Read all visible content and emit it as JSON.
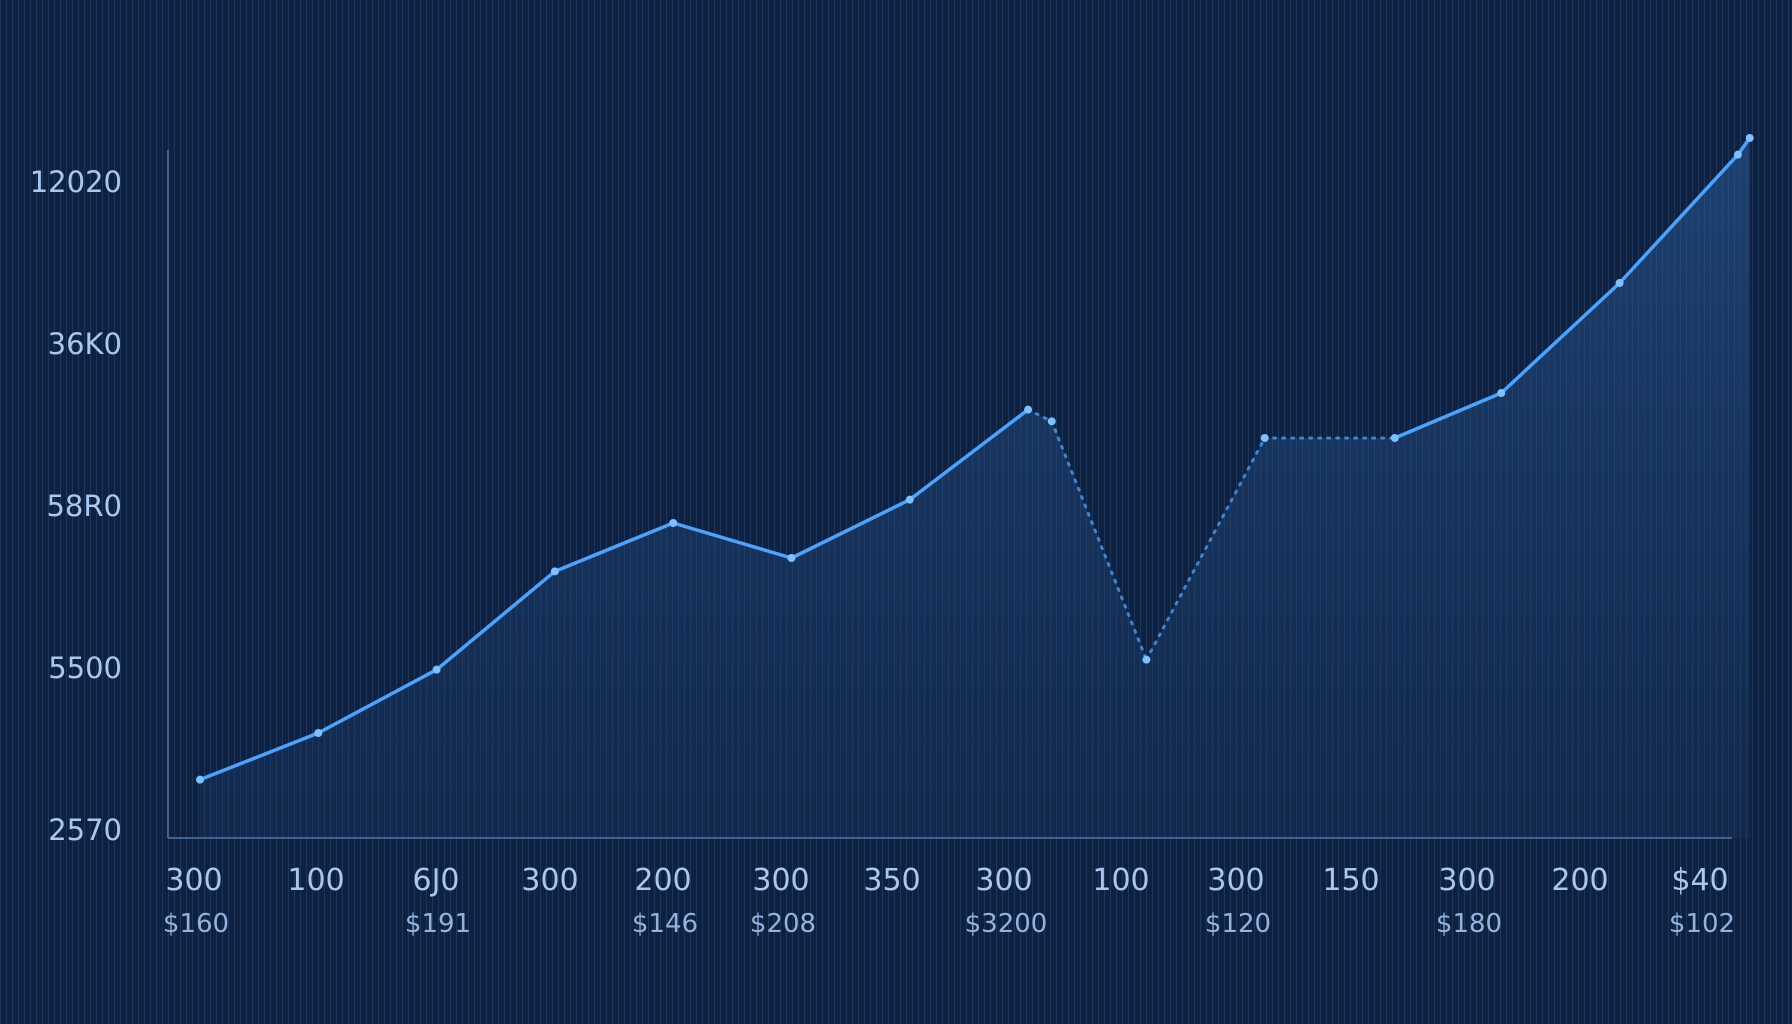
{
  "chart_data": {
    "type": "area",
    "title": "",
    "xlabel": "",
    "ylabel": "",
    "y_tick_labels": [
      "12020",
      "36K0",
      "58R0",
      "5500",
      "2570"
    ],
    "x_tick_labels": [
      "300",
      "100",
      "6J0",
      "300",
      "200",
      "300",
      "350",
      "300",
      "100",
      "300",
      "150",
      "300",
      "200",
      "$40"
    ],
    "x_sub_labels": [
      "$160",
      "",
      "$191",
      "",
      "$146",
      "$208",
      "",
      "$3200",
      "",
      "$120",
      "",
      "$180",
      "",
      "$102"
    ],
    "ylim": [
      0,
      4.2
    ],
    "grid": "vertical lines",
    "series": [
      {
        "x": [
          0,
          1,
          2,
          3,
          4,
          5,
          6,
          7,
          7.2,
          8,
          9,
          10.1,
          11,
          12,
          13,
          13.1
        ],
        "y": [
          0.35,
          0.63,
          1.01,
          1.6,
          1.89,
          1.68,
          2.03,
          2.57,
          2.5,
          1.07,
          2.4,
          2.4,
          2.67,
          3.33,
          4.1,
          4.2
        ],
        "segment_styles": [
          "solid",
          "solid",
          "solid",
          "solid",
          "solid",
          "solid",
          "solid",
          "dotted",
          "dotted",
          "dotted",
          "dotted",
          "solid",
          "solid",
          "solid",
          "solid"
        ]
      }
    ],
    "colors": {
      "background": "#10213f",
      "line": "#4aa3ff",
      "fill": "#1b3d6b",
      "axis": "#3e6496",
      "text": "#a9c7ef"
    }
  }
}
